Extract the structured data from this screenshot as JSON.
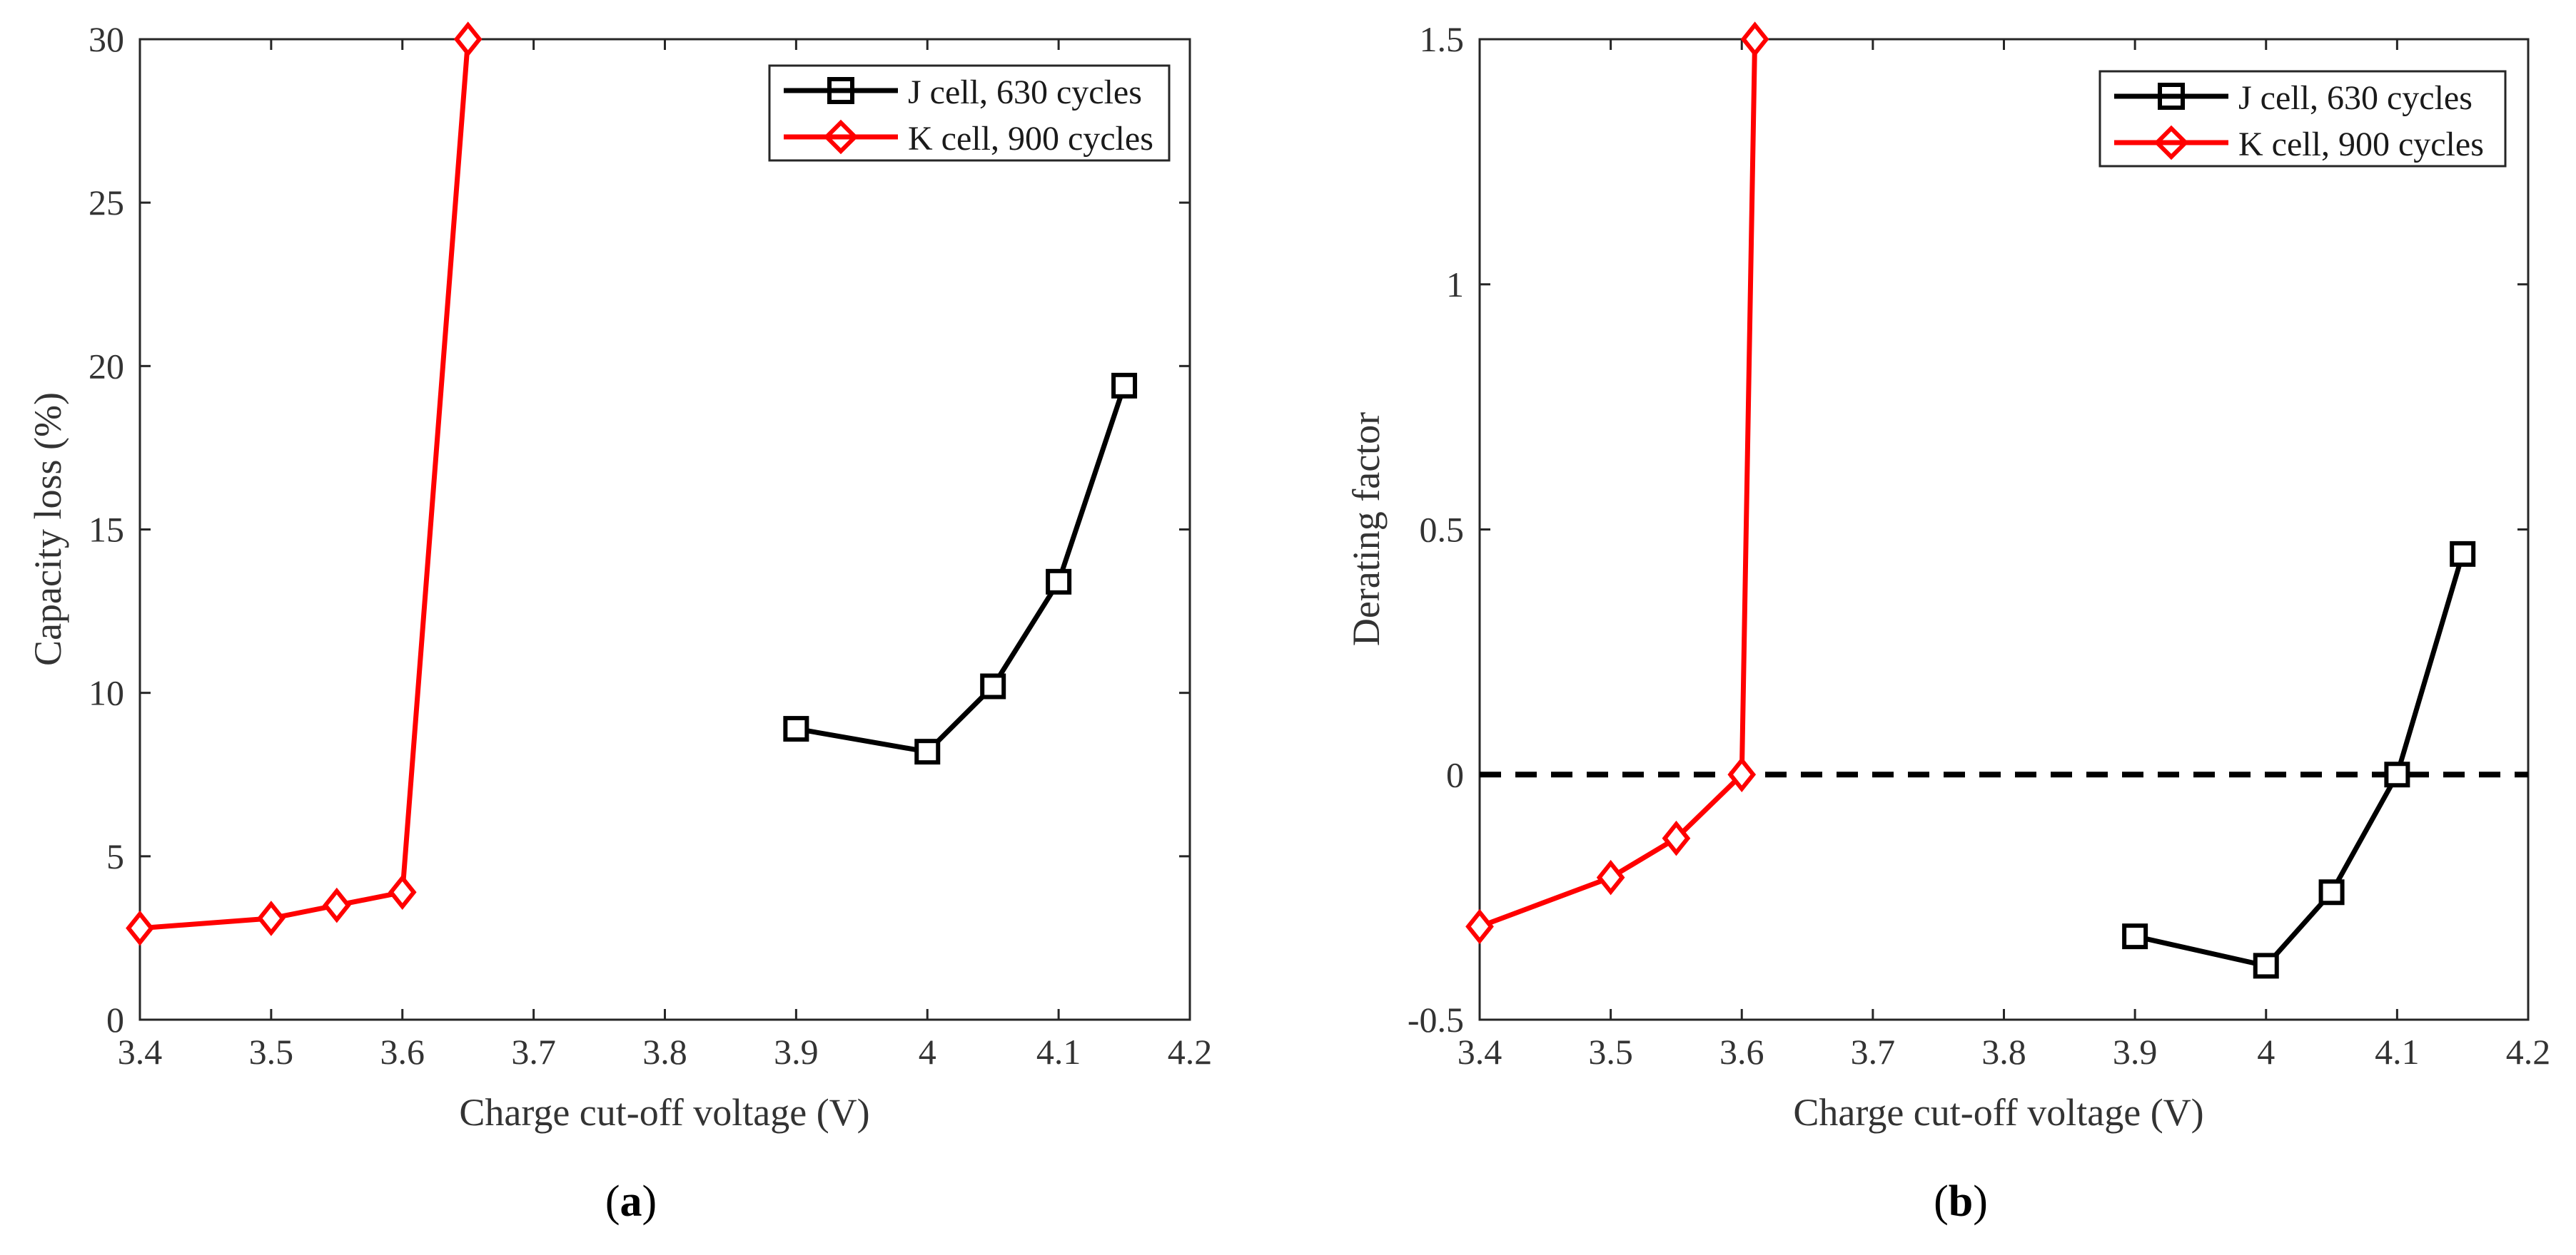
{
  "chart_data": [
    {
      "id": "a",
      "type": "line",
      "panel_label": "a",
      "xlabel": "Charge cut-off voltage (V)",
      "ylabel": "Capacity loss (%)",
      "xlim": [
        3.4,
        4.2
      ],
      "ylim": [
        0,
        30
      ],
      "xticks": [
        "3.4",
        "3.5",
        "3.6",
        "3.7",
        "3.8",
        "3.9",
        "4",
        "4.1",
        "4.2"
      ],
      "yticks": [
        "0",
        "5",
        "10",
        "15",
        "20",
        "25",
        "30"
      ],
      "legend_position": "top-right",
      "series": [
        {
          "name": "J cell, 630 cycles",
          "color": "#000000",
          "marker": "square",
          "x": [
            3.9,
            4.0,
            4.05,
            4.1,
            4.15
          ],
          "y": [
            8.9,
            8.2,
            10.2,
            13.4,
            19.4
          ]
        },
        {
          "name": "K cell, 900 cycles",
          "color": "#ff0000",
          "marker": "diamond",
          "x": [
            3.4,
            3.5,
            3.55,
            3.6,
            3.65
          ],
          "y": [
            2.8,
            3.1,
            3.5,
            3.9,
            30.0
          ]
        }
      ]
    },
    {
      "id": "b",
      "type": "line",
      "panel_label": "b",
      "xlabel": "Charge cut-off voltage (V)",
      "ylabel": "Derating factor",
      "xlim": [
        3.4,
        4.2
      ],
      "ylim": [
        -0.5,
        1.5
      ],
      "xticks": [
        "3.4",
        "3.5",
        "3.6",
        "3.7",
        "3.8",
        "3.9",
        "4",
        "4.1",
        "4.2"
      ],
      "yticks": [
        "-0.5",
        "0",
        "0.5",
        "1",
        "1.5"
      ],
      "legend_position": "top-right",
      "reference_line": {
        "y": 0,
        "style": "dashed",
        "color": "#000000"
      },
      "series": [
        {
          "name": "J cell, 630 cycles",
          "color": "#000000",
          "marker": "square",
          "x": [
            3.9,
            4.0,
            4.05,
            4.1,
            4.15
          ],
          "y": [
            -0.33,
            -0.39,
            -0.24,
            0.0,
            0.45
          ]
        },
        {
          "name": "K cell, 900 cycles",
          "color": "#ff0000",
          "marker": "diamond",
          "x": [
            3.4,
            3.5,
            3.55,
            3.6,
            3.61
          ],
          "y": [
            -0.31,
            -0.21,
            -0.13,
            0.0,
            1.5
          ]
        }
      ]
    }
  ],
  "captions": {
    "a": "a",
    "b": "b"
  }
}
